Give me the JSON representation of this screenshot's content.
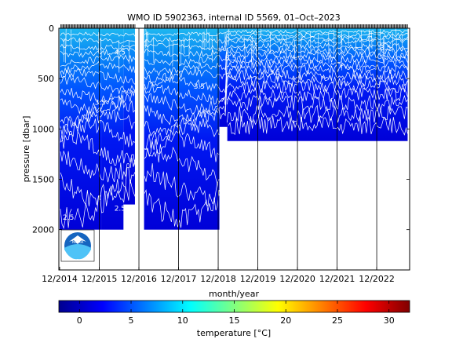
{
  "title": "WMO ID 5902363, internal ID 5569, 01–Oct–2023",
  "colors": {
    "white_gap": "#ffffff",
    "contour": "#ffffff",
    "axis": "#000000",
    "noaa_blue": "#1565c0",
    "noaa_light": "#4fc3f7"
  },
  "chart_data": {
    "type": "heatmap",
    "title": "WMO ID 5902363, internal ID 5569, 01–Oct–2023",
    "xlabel": "month/year",
    "ylabel": "pressure [dbar]",
    "x_ticks": [
      "12/2014",
      "12/2015",
      "12/2016",
      "12/2017",
      "12/2018",
      "12/2019",
      "12/2020",
      "12/2021",
      "12/2022"
    ],
    "x_range": [
      2014.9,
      2023.75
    ],
    "y_ticks": [
      0,
      500,
      1000,
      1500,
      2000
    ],
    "y_range": [
      0,
      2400
    ],
    "y_reversed": true,
    "profile_depths": [
      {
        "start": 2014.92,
        "end": 2015.97,
        "max_pressure": 2000
      },
      {
        "start": 2015.97,
        "end": 2016.53,
        "max_pressure": 2000
      },
      {
        "start": 2016.53,
        "end": 2016.82,
        "max_pressure": 1750
      },
      {
        "start": 2016.82,
        "end": 2017.05,
        "max_pressure": 0
      },
      {
        "start": 2017.05,
        "end": 2018.95,
        "max_pressure": 2000
      },
      {
        "start": 2018.95,
        "end": 2019.15,
        "max_pressure": 980
      },
      {
        "start": 2019.15,
        "end": 2023.7,
        "max_pressure": 1120
      }
    ],
    "surface_temperature_range": [
      5,
      12
    ],
    "deep_temperature_range": [
      2,
      3
    ],
    "contour_labels": [
      {
        "text": "2.5",
        "x": 2015.0,
        "y": 1900
      },
      {
        "text": "2.5",
        "x": 2016.3,
        "y": 1810
      },
      {
        "text": "3.5",
        "x": 2015.8,
        "y": 760
      },
      {
        "text": "3.5",
        "x": 2018.3,
        "y": 600
      },
      {
        "text": "3.5",
        "x": 2019.1,
        "y": 320
      },
      {
        "text": "3.5",
        "x": 2020.2,
        "y": 460
      },
      {
        "text": "3.5",
        "x": 2023.0,
        "y": 220
      },
      {
        "text": "4.5",
        "x": 2016.3,
        "y": 260
      }
    ],
    "colorbar": {
      "label": "temperature [°C]",
      "range": [
        -2,
        32
      ],
      "ticks": [
        0,
        5,
        10,
        15,
        20,
        25,
        30
      ],
      "colormap": "jet"
    }
  }
}
